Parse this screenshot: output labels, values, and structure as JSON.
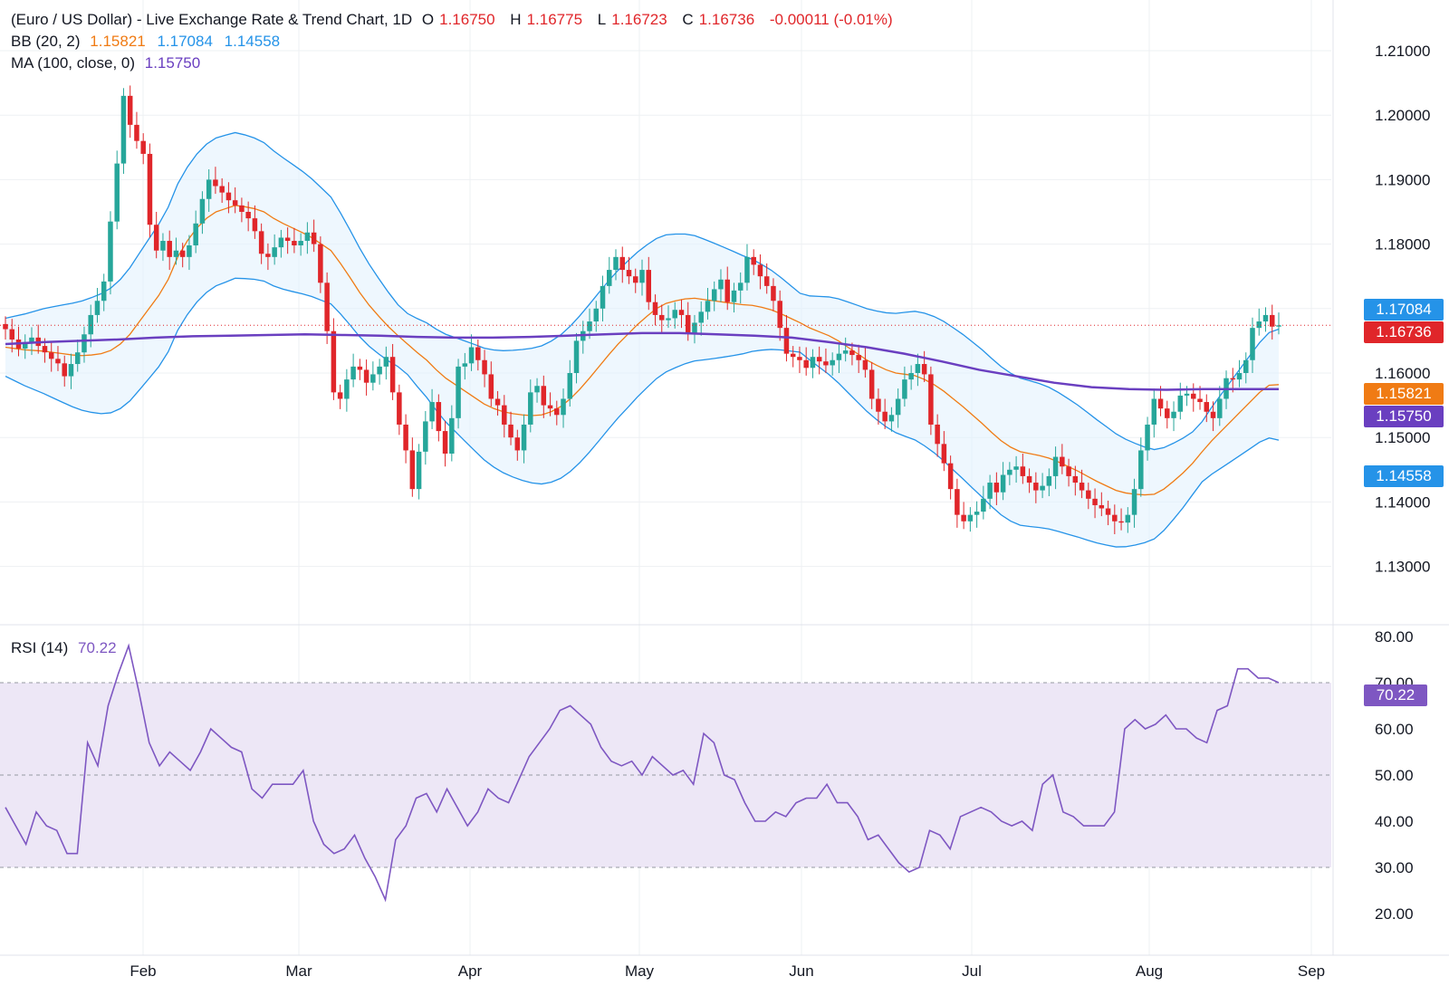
{
  "header": {
    "title": "(Euro / US Dollar) - Live Exchange Rate & Trend Chart, 1D",
    "open_label": "O",
    "open": "1.16750",
    "high_label": "H",
    "high": "1.16775",
    "low_label": "L",
    "low": "1.16723",
    "close_label": "C",
    "close": "1.16736",
    "change": "-0.00011 (-0.01%)"
  },
  "indicators": {
    "bb": {
      "label": "BB (20, 2)",
      "basis": "1.15821",
      "upper": "1.17084",
      "lower": "1.14558"
    },
    "ma": {
      "label": "MA (100, close, 0)",
      "value": "1.15750"
    },
    "rsi": {
      "label": "RSI (14)",
      "value": "70.22"
    }
  },
  "price_tags": {
    "upper": "1.17084",
    "last": "1.16736",
    "basis": "1.15821",
    "ma": "1.15750",
    "lower": "1.14558",
    "rsi": "70.22"
  },
  "colors": {
    "up": "#26a69a",
    "down": "#e0262a",
    "bb_basis": "#f07b14",
    "bb_band": "#2593e8",
    "ma": "#6a3fc0",
    "rsi": "#7e57c2",
    "rsi_fill": "#ede7f6",
    "bb_fill": "#e3f2fd",
    "grid": "#eef0f3"
  },
  "chart_data": [
    {
      "type": "candlestick",
      "title": "(Euro / US Dollar) - Live Exchange Rate & Trend Chart, 1D",
      "ylim": [
        1.125,
        1.215
      ],
      "yticks": [
        "1.21000",
        "1.20000",
        "1.19000",
        "1.18000",
        "1.17000",
        "1.16000",
        "1.15000",
        "1.14000",
        "1.13000"
      ],
      "xticks": [
        "Feb",
        "Mar",
        "Apr",
        "May",
        "Jun",
        "Jul",
        "Aug",
        "Sep"
      ],
      "grid": true,
      "series": [
        {
          "name": "Close",
          "values": [
            1.1668,
            1.1652,
            1.1638,
            1.1648,
            1.1655,
            1.1642,
            1.1632,
            1.1622,
            1.1615,
            1.1595,
            1.1614,
            1.1632,
            1.166,
            1.169,
            1.1712,
            1.1742,
            1.1835,
            1.1925,
            1.203,
            1.1985,
            1.196,
            1.194,
            1.183,
            1.179,
            1.1805,
            1.178,
            1.179,
            1.178,
            1.1798,
            1.1832,
            1.187,
            1.19,
            1.189,
            1.188,
            1.1868,
            1.186,
            1.185,
            1.184,
            1.182,
            1.1785,
            1.178,
            1.1795,
            1.181,
            1.1805,
            1.1798,
            1.1805,
            1.1818,
            1.18,
            1.174,
            1.1665,
            1.157,
            1.156,
            1.159,
            1.161,
            1.1605,
            1.1585,
            1.1598,
            1.161,
            1.1625,
            1.157,
            1.152,
            1.148,
            1.142,
            1.1478,
            1.1525,
            1.1555,
            1.151,
            1.1475,
            1.153,
            1.161,
            1.1615,
            1.164,
            1.162,
            1.1598,
            1.156,
            1.155,
            1.152,
            1.15,
            1.148,
            1.152,
            1.157,
            1.158,
            1.155,
            1.1545,
            1.1535,
            1.156,
            1.16,
            1.165,
            1.1665,
            1.168,
            1.17,
            1.1735,
            1.176,
            1.178,
            1.176,
            1.175,
            1.174,
            1.176,
            1.171,
            1.169,
            1.1682,
            1.1685,
            1.1698,
            1.169,
            1.1662,
            1.1678,
            1.1695,
            1.1712,
            1.173,
            1.1745,
            1.171,
            1.1728,
            1.174,
            1.178,
            1.1768,
            1.175,
            1.1735,
            1.1712,
            1.167,
            1.163,
            1.1625,
            1.162,
            1.1608,
            1.1625,
            1.1618,
            1.1612,
            1.162,
            1.163,
            1.1635,
            1.1628,
            1.162,
            1.1605,
            1.156,
            1.154,
            1.1525,
            1.1535,
            1.156,
            1.159,
            1.16,
            1.1614,
            1.1598,
            1.152,
            1.149,
            1.146,
            1.142,
            1.138,
            1.137,
            1.138,
            1.1385,
            1.1405,
            1.143,
            1.1415,
            1.1442,
            1.145,
            1.1455,
            1.144,
            1.143,
            1.1418,
            1.1425,
            1.144,
            1.147,
            1.1455,
            1.144,
            1.143,
            1.1418,
            1.1405,
            1.1395,
            1.139,
            1.138,
            1.137,
            1.1368,
            1.138,
            1.142,
            1.148,
            1.152,
            1.156,
            1.1545,
            1.153,
            1.154,
            1.1565,
            1.1568,
            1.156,
            1.1555,
            1.154,
            1.153,
            1.156,
            1.1592,
            1.159,
            1.16,
            1.162,
            1.167,
            1.168,
            1.169,
            1.1672,
            1.1674
          ]
        },
        {
          "name": "BB (20, 2)",
          "values": [
            1.164,
            1.1638,
            1.1636,
            1.1635,
            1.1634,
            1.1632,
            1.163,
            1.1628,
            1.1627,
            1.1628,
            1.163,
            1.1635,
            1.1645,
            1.166,
            1.168,
            1.17,
            1.172,
            1.1745,
            1.178,
            1.1805,
            1.1825,
            1.184,
            1.185,
            1.1855,
            1.186,
            1.1858,
            1.1855,
            1.185,
            1.184,
            1.1832,
            1.1825,
            1.1818,
            1.181,
            1.18,
            1.179,
            1.177,
            1.1748,
            1.1725,
            1.1705,
            1.1688,
            1.1672,
            1.1658,
            1.1645,
            1.1632,
            1.162,
            1.1605,
            1.1592,
            1.1582,
            1.1572,
            1.1562,
            1.1552,
            1.1545,
            1.154,
            1.1537,
            1.1535,
            1.1534,
            1.1535,
            1.154,
            1.1548,
            1.156,
            1.1575,
            1.1592,
            1.161,
            1.1628,
            1.1645,
            1.166,
            1.1675,
            1.1688,
            1.17,
            1.1708,
            1.1712,
            1.1715,
            1.1716,
            1.1714,
            1.1712,
            1.171,
            1.1708,
            1.1706,
            1.1705,
            1.1702,
            1.1698,
            1.1692,
            1.1685,
            1.1678,
            1.167,
            1.1664,
            1.1658,
            1.165,
            1.164,
            1.163,
            1.162,
            1.1612,
            1.1605,
            1.16,
            1.1598,
            1.1596,
            1.159,
            1.1582,
            1.1572,
            1.156,
            1.1548,
            1.1535,
            1.1522,
            1.1508,
            1.1495,
            1.1485,
            1.1478,
            1.1475,
            1.1472,
            1.1468,
            1.1462,
            1.1455,
            1.1448,
            1.144,
            1.1432,
            1.1425,
            1.1418,
            1.1414,
            1.1412,
            1.1411,
            1.1412,
            1.142,
            1.1432,
            1.1445,
            1.146,
            1.1478,
            1.1495,
            1.151,
            1.1525,
            1.154,
            1.1555,
            1.157,
            1.1581,
            1.1582
          ]
        },
        {
          "name": "MA (100, close, 0)",
          "values": [
            1.1645,
            1.1648,
            1.165,
            1.1652,
            1.1655,
            1.1657,
            1.1658,
            1.1659,
            1.166,
            1.1659,
            1.1658,
            1.1656,
            1.1655,
            1.1655,
            1.1656,
            1.1658,
            1.166,
            1.1662,
            1.1662,
            1.166,
            1.1658,
            1.1655,
            1.1648,
            1.164,
            1.163,
            1.1618,
            1.1605,
            1.1595,
            1.1585,
            1.1578,
            1.1575,
            1.1574,
            1.1575,
            1.1575,
            1.1575
          ]
        }
      ]
    },
    {
      "type": "line",
      "title": "RSI (14)",
      "ylim": [
        17,
        82
      ],
      "yticks": [
        "80.00",
        "70.00",
        "60.00",
        "50.00",
        "40.00",
        "30.00",
        "20.00"
      ],
      "series": [
        {
          "name": "RSI (14)",
          "values": [
            43,
            39,
            35,
            42,
            39,
            38,
            33,
            33,
            57,
            52,
            65,
            72,
            78,
            68,
            57,
            52,
            55,
            53,
            51,
            55,
            60,
            58,
            56,
            55,
            47,
            45,
            48,
            48,
            48,
            51,
            40,
            35,
            33,
            34,
            37,
            32,
            28,
            23,
            36,
            39,
            45,
            46,
            42,
            47,
            43,
            39,
            42,
            47,
            45,
            44,
            49,
            54,
            57,
            60,
            64,
            65,
            63,
            61,
            56,
            53,
            52,
            53,
            50,
            54,
            52,
            50,
            51,
            48,
            59,
            57,
            50,
            49,
            44,
            40,
            40,
            42,
            41,
            44,
            45,
            45,
            48,
            44,
            44,
            41,
            36,
            37,
            34,
            31,
            29,
            30,
            38,
            37,
            34,
            41,
            42,
            43,
            42,
            40,
            39,
            40,
            38,
            48,
            50,
            42,
            41,
            39,
            39,
            39,
            42,
            60,
            62,
            60,
            61,
            63,
            60,
            60,
            58,
            57,
            64,
            65,
            73,
            73,
            71,
            71,
            70
          ]
        }
      ]
    }
  ]
}
